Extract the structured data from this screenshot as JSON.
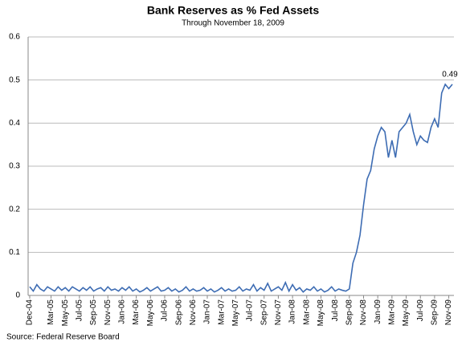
{
  "chart_data": {
    "type": "line",
    "title": "Bank Reserves as % Fed Assets",
    "subtitle": "Through November 18, 2009",
    "source": "Source: Federal Reserve Board",
    "annotation": "0.49",
    "categories": [
      "Dec-04",
      null,
      null,
      null,
      null,
      null,
      "Mar-05",
      null,
      null,
      null,
      "May-05",
      null,
      null,
      null,
      "Jul-05",
      null,
      null,
      null,
      "Sep-05",
      null,
      null,
      null,
      "Nov-05",
      null,
      null,
      null,
      "Jan-06",
      null,
      null,
      null,
      "Mar-06",
      null,
      null,
      null,
      "May-06",
      null,
      null,
      null,
      "Jul-06",
      null,
      null,
      null,
      "Sep-06",
      null,
      null,
      null,
      "Nov-06",
      null,
      null,
      null,
      "Jan-07",
      null,
      null,
      null,
      "Mar-07",
      null,
      null,
      null,
      "May-07",
      null,
      null,
      null,
      "Jul-07",
      null,
      null,
      null,
      "Sep-07",
      null,
      null,
      null,
      "Nov-07",
      null,
      null,
      null,
      "Jan-08",
      null,
      null,
      null,
      "Mar-08",
      null,
      null,
      null,
      "May-08",
      null,
      null,
      null,
      "Jul-08",
      null,
      null,
      null,
      "Sep-08",
      null,
      null,
      null,
      "Nov-08",
      null,
      null,
      null,
      "Jan-09",
      null,
      null,
      null,
      "Mar-09",
      null,
      null,
      null,
      "May-09",
      null,
      null,
      null,
      "Jul-09",
      null,
      null,
      null,
      "Sep-09",
      null,
      null,
      null,
      "Nov-09",
      null
    ],
    "series": [
      {
        "color": "#3d6cb3",
        "values": [
          0.02,
          0.01,
          0.025,
          0.015,
          0.01,
          0.02,
          0.015,
          0.01,
          0.02,
          0.012,
          0.018,
          0.01,
          0.02,
          0.015,
          0.01,
          0.018,
          0.012,
          0.02,
          0.01,
          0.015,
          0.018,
          0.01,
          0.02,
          0.012,
          0.015,
          0.01,
          0.018,
          0.012,
          0.02,
          0.01,
          0.015,
          0.008,
          0.012,
          0.018,
          0.01,
          0.015,
          0.02,
          0.01,
          0.012,
          0.018,
          0.01,
          0.015,
          0.008,
          0.012,
          0.02,
          0.01,
          0.015,
          0.01,
          0.012,
          0.018,
          0.01,
          0.015,
          0.008,
          0.012,
          0.018,
          0.01,
          0.015,
          0.01,
          0.012,
          0.02,
          0.01,
          0.015,
          0.012,
          0.025,
          0.01,
          0.018,
          0.012,
          0.028,
          0.01,
          0.015,
          0.02,
          0.012,
          0.03,
          0.01,
          0.025,
          0.012,
          0.018,
          0.008,
          0.015,
          0.012,
          0.02,
          0.01,
          0.015,
          0.008,
          0.012,
          0.02,
          0.01,
          0.015,
          0.012,
          0.01,
          0.015,
          0.075,
          0.1,
          0.14,
          0.21,
          0.27,
          0.29,
          0.34,
          0.37,
          0.39,
          0.38,
          0.32,
          0.36,
          0.32,
          0.38,
          0.39,
          0.4,
          0.42,
          0.38,
          0.35,
          0.37,
          0.36,
          0.355,
          0.39,
          0.41,
          0.39,
          0.47,
          0.49,
          0.48,
          0.49
        ]
      }
    ],
    "ylim": [
      0,
      0.6
    ],
    "yticks": [
      0,
      0.1,
      0.2,
      0.3,
      0.4,
      0.5,
      0.6
    ],
    "grid": true
  }
}
